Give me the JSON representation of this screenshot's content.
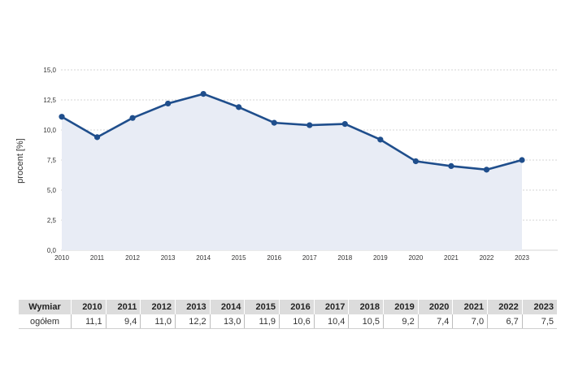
{
  "chart_data": {
    "type": "area",
    "title": "",
    "xlabel": "",
    "ylabel": "procent [%]",
    "ylim": [
      0,
      15
    ],
    "yticks": [
      "0,0",
      "2,5",
      "5,0",
      "7,5",
      "10,0",
      "12,5",
      "15,0"
    ],
    "grid": true,
    "legend": "none",
    "categories": [
      "2010",
      "2011",
      "2012",
      "2013",
      "2014",
      "2015",
      "2016",
      "2017",
      "2018",
      "2019",
      "2020",
      "2021",
      "2022",
      "2023"
    ],
    "series": [
      {
        "values": [
          11.1,
          9.4,
          11.0,
          12.2,
          13.0,
          11.9,
          10.6,
          10.4,
          10.5,
          9.2,
          7.4,
          7.0,
          6.7,
          7.5
        ]
      }
    ],
    "colors": {
      "line": "#1f4e8c",
      "fill": "#e8ecf5",
      "grid": "#c8c8c8"
    }
  },
  "table": {
    "header": "Wymiar",
    "row_label": "ogółem",
    "years": [
      "2010",
      "2011",
      "2012",
      "2013",
      "2014",
      "2015",
      "2016",
      "2017",
      "2018",
      "2019",
      "2020",
      "2021",
      "2022",
      "2023"
    ],
    "values": [
      "11,1",
      "9,4",
      "11,0",
      "12,2",
      "13,0",
      "11,9",
      "10,6",
      "10,4",
      "10,5",
      "9,2",
      "7,4",
      "7,0",
      "6,7",
      "7,5"
    ]
  }
}
